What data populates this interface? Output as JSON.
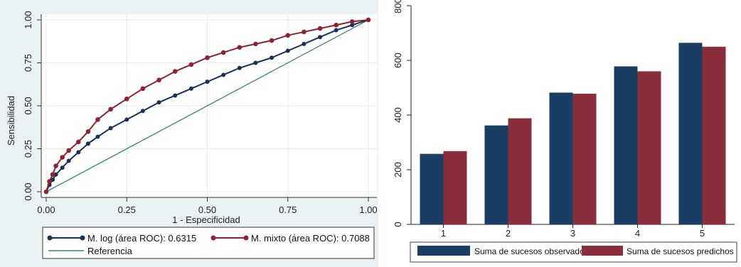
{
  "chart_data": [
    {
      "type": "line",
      "xlabel": "1 - Especificidad",
      "ylabel": "Sensibilidad",
      "xlim": [
        0,
        1
      ],
      "ylim": [
        0,
        1
      ],
      "x_ticks": [
        "0.00",
        "0.25",
        "0.50",
        "0.75",
        "1.00"
      ],
      "y_ticks": [
        "0.00",
        "0.25",
        "0.50",
        "0.75",
        "1.00"
      ],
      "grid": true,
      "legend_position": "bottom",
      "series": [
        {
          "name": "M. log (área ROC): 0.6315",
          "color": "#1a2f5a",
          "marker": "circle",
          "x": [
            0,
            0.01,
            0.02,
            0.03,
            0.05,
            0.07,
            0.1,
            0.13,
            0.16,
            0.2,
            0.25,
            0.3,
            0.35,
            0.4,
            0.45,
            0.5,
            0.55,
            0.6,
            0.65,
            0.7,
            0.75,
            0.8,
            0.85,
            0.9,
            0.95,
            1
          ],
          "y": [
            0,
            0.04,
            0.07,
            0.1,
            0.14,
            0.18,
            0.23,
            0.28,
            0.32,
            0.37,
            0.42,
            0.47,
            0.52,
            0.56,
            0.6,
            0.64,
            0.68,
            0.72,
            0.75,
            0.78,
            0.82,
            0.86,
            0.9,
            0.94,
            0.97,
            1
          ]
        },
        {
          "name": "M. mixto (área ROC): 0.7088",
          "color": "#8b2331",
          "marker": "circle",
          "x": [
            0,
            0.01,
            0.02,
            0.03,
            0.05,
            0.07,
            0.1,
            0.13,
            0.16,
            0.2,
            0.25,
            0.3,
            0.35,
            0.4,
            0.45,
            0.5,
            0.55,
            0.6,
            0.65,
            0.7,
            0.75,
            0.8,
            0.85,
            0.9,
            0.95,
            1
          ],
          "y": [
            0,
            0.06,
            0.1,
            0.15,
            0.2,
            0.24,
            0.29,
            0.35,
            0.42,
            0.48,
            0.54,
            0.6,
            0.65,
            0.7,
            0.74,
            0.78,
            0.81,
            0.84,
            0.86,
            0.88,
            0.91,
            0.93,
            0.95,
            0.97,
            0.99,
            1
          ]
        },
        {
          "name": "Referencia",
          "color": "#3a7f7c",
          "marker": "none",
          "x": [
            0,
            1
          ],
          "y": [
            0,
            1
          ]
        }
      ]
    },
    {
      "type": "bar",
      "categories": [
        "1",
        "2",
        "3",
        "4",
        "5"
      ],
      "ylim": [
        0,
        800
      ],
      "y_ticks": [
        "0",
        "200",
        "400",
        "600",
        "800"
      ],
      "legend_position": "bottom",
      "series": [
        {
          "name": "Suma de sucesos observados",
          "color": "#1a3d63",
          "values": [
            258,
            362,
            482,
            578,
            664
          ]
        },
        {
          "name": "Suma de sucesos predichos",
          "color": "#8b2e3b",
          "values": [
            268,
            388,
            478,
            560,
            650
          ]
        }
      ]
    }
  ]
}
